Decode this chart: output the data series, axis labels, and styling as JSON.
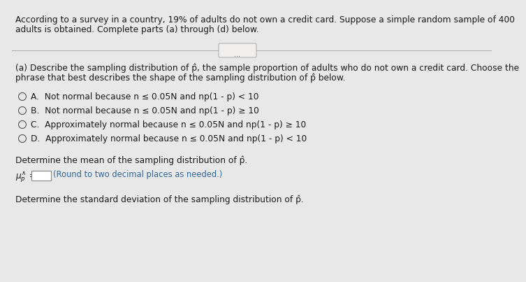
{
  "bg_color": "#e8e8e8",
  "panel_color": "#f0efed",
  "text_color": "#1a1a1a",
  "intro_text_line1": "According to a survey in a country, 19% of adults do not own a credit card. Suppose a simple random sample of 400",
  "intro_text_line2": "adults is obtained. Complete parts (a) through (d) below.",
  "dots_label": "...",
  "part_a_line1": "(a) Describe the sampling distribution of p̂, the sample proportion of adults who do not own a credit card. Choose the",
  "part_a_line2": "phrase that best describes the shape of the sampling distribution of p̂ below.",
  "options": [
    "A.  Not normal because n ≤ 0.05N and np(1 - p) < 10",
    "B.  Not normal because n ≤ 0.05N and np(1 - p) ≥ 10",
    "C.  Approximately normal because n ≤ 0.05N and np(1 - p) ≥ 10",
    "D.  Approximately normal because n ≤ 0.05N and np(1 - p) < 10"
  ],
  "mean_label": "Determine the mean of the sampling distribution of p̂.",
  "mean_hint": "(Round to two decimal places as needed.)",
  "std_label": "Determine the standard deviation of the sampling distribution of p̂.",
  "font_size": 8.8,
  "circle_color": "#555555"
}
